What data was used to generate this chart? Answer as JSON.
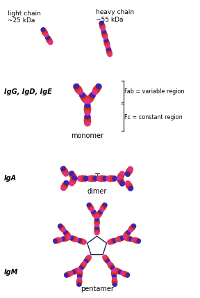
{
  "background": "#ffffff",
  "domain_colors": {
    "body": "#dd3311",
    "purple_end": "#4422aa",
    "pink_end": "#dd3399"
  },
  "labels": {
    "light_chain": "light chain\n~25 kDa",
    "heavy_chain": "heavy chain\n~55 kDa",
    "monomer": "monomer",
    "dimer": "dimer",
    "pentamer": "pentamer",
    "IgG_label": "IgG, IgD, IgE",
    "IgA_label": "IgA",
    "IgM_label": "IgM",
    "Fab": "Fab = variable region",
    "Fc": "Fc = constant region"
  },
  "layout": {
    "fig_w": 2.88,
    "fig_h": 4.28,
    "dpi": 100,
    "xlim": [
      0,
      288
    ],
    "ylim": [
      428,
      0
    ]
  }
}
